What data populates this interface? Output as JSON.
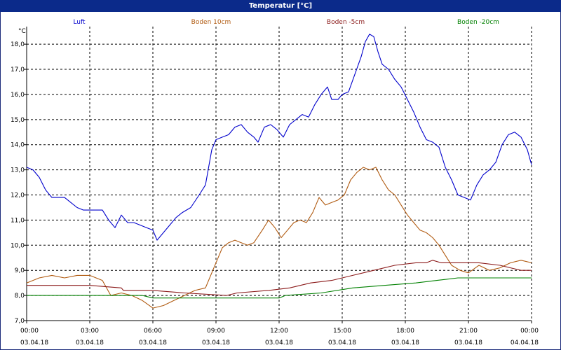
{
  "window": {
    "title": "Temperatur [°C]"
  },
  "colors": {
    "titlebar": "#0b2a8a",
    "grid": "#000000"
  },
  "chart_data": {
    "type": "line",
    "title": "Temperatur [°C]",
    "ylabel": "°C",
    "xlabel": "",
    "ylim": [
      7.0,
      18.7
    ],
    "xlim": [
      0,
      24
    ],
    "yticks": [
      7.0,
      8.0,
      9.0,
      10.0,
      11.0,
      12.0,
      13.0,
      14.0,
      15.0,
      16.0,
      17.0,
      18.0
    ],
    "ytick_labels": [
      "7,0",
      "8,0",
      "9,0",
      "10,0",
      "11,0",
      "12,0",
      "13,0",
      "14,0",
      "15,0",
      "16,0",
      "17,0",
      "18,0"
    ],
    "xticks": [
      0,
      3,
      6,
      9,
      12,
      15,
      18,
      21,
      24
    ],
    "xtick_times": [
      "00:00",
      "03:00",
      "06:00",
      "09:00",
      "12:00",
      "15:00",
      "18:00",
      "21:00",
      "00:00"
    ],
    "xtick_dates": [
      "03.04.18",
      "03.04.18",
      "03.04.18",
      "03.04.18",
      "03.04.18",
      "03.04.18",
      "03.04.18",
      "03.04.18",
      "04.04.18"
    ],
    "grid": true,
    "legend_position": "top",
    "series": [
      {
        "name": "Luft",
        "color": "#0000cc",
        "points": [
          [
            0,
            13.1
          ],
          [
            0.3,
            13.0
          ],
          [
            0.6,
            12.7
          ],
          [
            0.9,
            12.2
          ],
          [
            1.2,
            11.9
          ],
          [
            1.5,
            11.9
          ],
          [
            1.8,
            11.9
          ],
          [
            2.1,
            11.7
          ],
          [
            2.4,
            11.5
          ],
          [
            2.7,
            11.4
          ],
          [
            3.0,
            11.4
          ],
          [
            3.3,
            11.4
          ],
          [
            3.6,
            11.4
          ],
          [
            3.9,
            11.0
          ],
          [
            4.2,
            10.7
          ],
          [
            4.5,
            11.2
          ],
          [
            4.8,
            10.9
          ],
          [
            5.1,
            10.9
          ],
          [
            5.4,
            10.8
          ],
          [
            5.7,
            10.7
          ],
          [
            6.0,
            10.6
          ],
          [
            6.2,
            10.2
          ],
          [
            6.5,
            10.5
          ],
          [
            6.8,
            10.8
          ],
          [
            7.1,
            11.1
          ],
          [
            7.4,
            11.3
          ],
          [
            7.8,
            11.5
          ],
          [
            8.2,
            12.0
          ],
          [
            8.5,
            12.4
          ],
          [
            8.8,
            13.8
          ],
          [
            9.0,
            14.2
          ],
          [
            9.3,
            14.3
          ],
          [
            9.6,
            14.4
          ],
          [
            9.9,
            14.7
          ],
          [
            10.2,
            14.8
          ],
          [
            10.5,
            14.5
          ],
          [
            10.8,
            14.3
          ],
          [
            11.0,
            14.1
          ],
          [
            11.3,
            14.7
          ],
          [
            11.6,
            14.8
          ],
          [
            11.9,
            14.6
          ],
          [
            12.2,
            14.3
          ],
          [
            12.5,
            14.8
          ],
          [
            12.8,
            15.0
          ],
          [
            13.1,
            15.2
          ],
          [
            13.4,
            15.1
          ],
          [
            13.7,
            15.6
          ],
          [
            14.0,
            16.0
          ],
          [
            14.3,
            16.3
          ],
          [
            14.5,
            15.8
          ],
          [
            14.8,
            15.8
          ],
          [
            15.0,
            16.0
          ],
          [
            15.3,
            16.1
          ],
          [
            15.6,
            16.8
          ],
          [
            15.9,
            17.5
          ],
          [
            16.1,
            18.1
          ],
          [
            16.3,
            18.4
          ],
          [
            16.5,
            18.3
          ],
          [
            16.7,
            17.7
          ],
          [
            16.9,
            17.2
          ],
          [
            17.2,
            17.0
          ],
          [
            17.5,
            16.6
          ],
          [
            17.8,
            16.3
          ],
          [
            18.1,
            15.8
          ],
          [
            18.4,
            15.3
          ],
          [
            18.7,
            14.7
          ],
          [
            19.0,
            14.2
          ],
          [
            19.3,
            14.1
          ],
          [
            19.6,
            13.9
          ],
          [
            19.9,
            13.1
          ],
          [
            20.2,
            12.6
          ],
          [
            20.5,
            12.0
          ],
          [
            20.8,
            11.9
          ],
          [
            21.1,
            11.8
          ],
          [
            21.4,
            12.4
          ],
          [
            21.7,
            12.8
          ],
          [
            22.0,
            13.0
          ],
          [
            22.3,
            13.3
          ],
          [
            22.6,
            14.0
          ],
          [
            22.9,
            14.4
          ],
          [
            23.2,
            14.5
          ],
          [
            23.5,
            14.3
          ],
          [
            23.8,
            13.8
          ],
          [
            24.0,
            13.2
          ]
        ]
      },
      {
        "name": "Boden 10cm",
        "color": "#b05a10",
        "points": [
          [
            0,
            8.5
          ],
          [
            0.6,
            8.7
          ],
          [
            1.2,
            8.8
          ],
          [
            1.8,
            8.7
          ],
          [
            2.4,
            8.8
          ],
          [
            3.0,
            8.8
          ],
          [
            3.6,
            8.6
          ],
          [
            4.0,
            8.0
          ],
          [
            4.5,
            8.1
          ],
          [
            5.0,
            8.0
          ],
          [
            5.5,
            7.8
          ],
          [
            6.0,
            7.5
          ],
          [
            6.5,
            7.6
          ],
          [
            7.0,
            7.8
          ],
          [
            7.5,
            8.0
          ],
          [
            8.0,
            8.2
          ],
          [
            8.5,
            8.3
          ],
          [
            9.0,
            9.3
          ],
          [
            9.3,
            9.9
          ],
          [
            9.6,
            10.1
          ],
          [
            9.9,
            10.2
          ],
          [
            10.2,
            10.1
          ],
          [
            10.5,
            10.0
          ],
          [
            10.8,
            10.1
          ],
          [
            11.2,
            10.6
          ],
          [
            11.5,
            11.0
          ],
          [
            11.8,
            10.7
          ],
          [
            12.1,
            10.3
          ],
          [
            12.4,
            10.6
          ],
          [
            12.7,
            10.9
          ],
          [
            13.0,
            11.0
          ],
          [
            13.3,
            10.9
          ],
          [
            13.6,
            11.3
          ],
          [
            13.9,
            11.9
          ],
          [
            14.2,
            11.6
          ],
          [
            14.5,
            11.7
          ],
          [
            14.8,
            11.8
          ],
          [
            15.1,
            12.0
          ],
          [
            15.4,
            12.6
          ],
          [
            15.7,
            12.9
          ],
          [
            16.0,
            13.1
          ],
          [
            16.3,
            13.0
          ],
          [
            16.6,
            13.1
          ],
          [
            16.9,
            12.6
          ],
          [
            17.2,
            12.2
          ],
          [
            17.5,
            12.0
          ],
          [
            17.8,
            11.6
          ],
          [
            18.1,
            11.2
          ],
          [
            18.4,
            10.9
          ],
          [
            18.7,
            10.6
          ],
          [
            19.0,
            10.5
          ],
          [
            19.3,
            10.3
          ],
          [
            19.6,
            10.0
          ],
          [
            19.9,
            9.6
          ],
          [
            20.2,
            9.2
          ],
          [
            20.6,
            9.0
          ],
          [
            21.0,
            8.9
          ],
          [
            21.5,
            9.2
          ],
          [
            22.0,
            9.0
          ],
          [
            22.5,
            9.1
          ],
          [
            23.0,
            9.3
          ],
          [
            23.5,
            9.4
          ],
          [
            24.0,
            9.3
          ]
        ]
      },
      {
        "name": "Boden -5cm",
        "color": "#8b1a1a",
        "points": [
          [
            0,
            8.4
          ],
          [
            3.0,
            8.4
          ],
          [
            4.5,
            8.3
          ],
          [
            4.6,
            8.2
          ],
          [
            6.0,
            8.2
          ],
          [
            7.5,
            8.1
          ],
          [
            9.5,
            8.0
          ],
          [
            10.0,
            8.1
          ],
          [
            11.5,
            8.2
          ],
          [
            12.5,
            8.3
          ],
          [
            13.5,
            8.5
          ],
          [
            14.5,
            8.6
          ],
          [
            15.5,
            8.8
          ],
          [
            16.5,
            9.0
          ],
          [
            17.5,
            9.2
          ],
          [
            18.5,
            9.3
          ],
          [
            19.0,
            9.3
          ],
          [
            19.3,
            9.4
          ],
          [
            19.7,
            9.3
          ],
          [
            21.5,
            9.3
          ],
          [
            22.5,
            9.2
          ],
          [
            23.0,
            9.1
          ],
          [
            23.5,
            9.0
          ],
          [
            24.0,
            9.0
          ]
        ]
      },
      {
        "name": "Boden -20cm",
        "color": "#008000",
        "points": [
          [
            0,
            8.0
          ],
          [
            5.5,
            8.0
          ],
          [
            6.0,
            7.9
          ],
          [
            12.0,
            7.9
          ],
          [
            12.3,
            8.0
          ],
          [
            14.0,
            8.1
          ],
          [
            15.5,
            8.3
          ],
          [
            17.0,
            8.4
          ],
          [
            18.5,
            8.5
          ],
          [
            19.5,
            8.6
          ],
          [
            20.5,
            8.7
          ],
          [
            24.0,
            8.7
          ]
        ]
      }
    ]
  }
}
